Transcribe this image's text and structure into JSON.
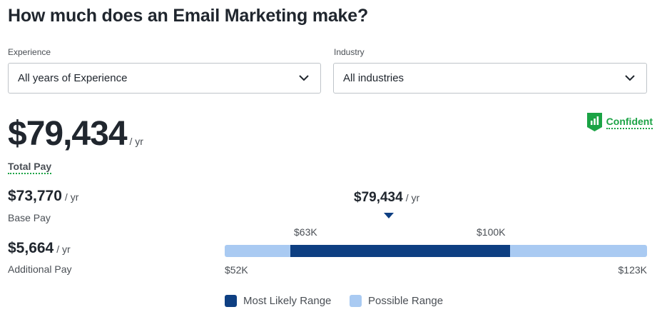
{
  "title": "How much does an Email Marketing make?",
  "filters": {
    "experience": {
      "label": "Experience",
      "value": "All years of Experience"
    },
    "industry": {
      "label": "Industry",
      "value": "All industries"
    }
  },
  "confidence": {
    "label": "Confident"
  },
  "total_pay": {
    "amount": "$79,434",
    "period": "/ yr",
    "label": "Total Pay"
  },
  "base_pay": {
    "amount": "$73,770",
    "period": "/ yr",
    "label": "Base Pay"
  },
  "additional_pay": {
    "amount": "$5,664",
    "period": "/ yr",
    "label": "Additional Pay"
  },
  "range_chart": {
    "median_label": "$79,434",
    "period": "/ yr",
    "most_likely_low_label": "$63K",
    "most_likely_high_label": "$100K",
    "possible_low_label": "$52K",
    "possible_high_label": "$123K",
    "legend": {
      "most_likely": "Most Likely Range",
      "possible": "Possible Range"
    }
  },
  "chart_data": {
    "type": "bar",
    "title": "",
    "median": 79434,
    "most_likely_range": [
      63000,
      100000
    ],
    "possible_range": [
      52000,
      123000
    ],
    "xlim": [
      52000,
      123000
    ]
  },
  "colors": {
    "most_likely": "#0e3f82",
    "possible": "#a9caf2",
    "confident": "#1ba345",
    "text": "#20262e"
  }
}
